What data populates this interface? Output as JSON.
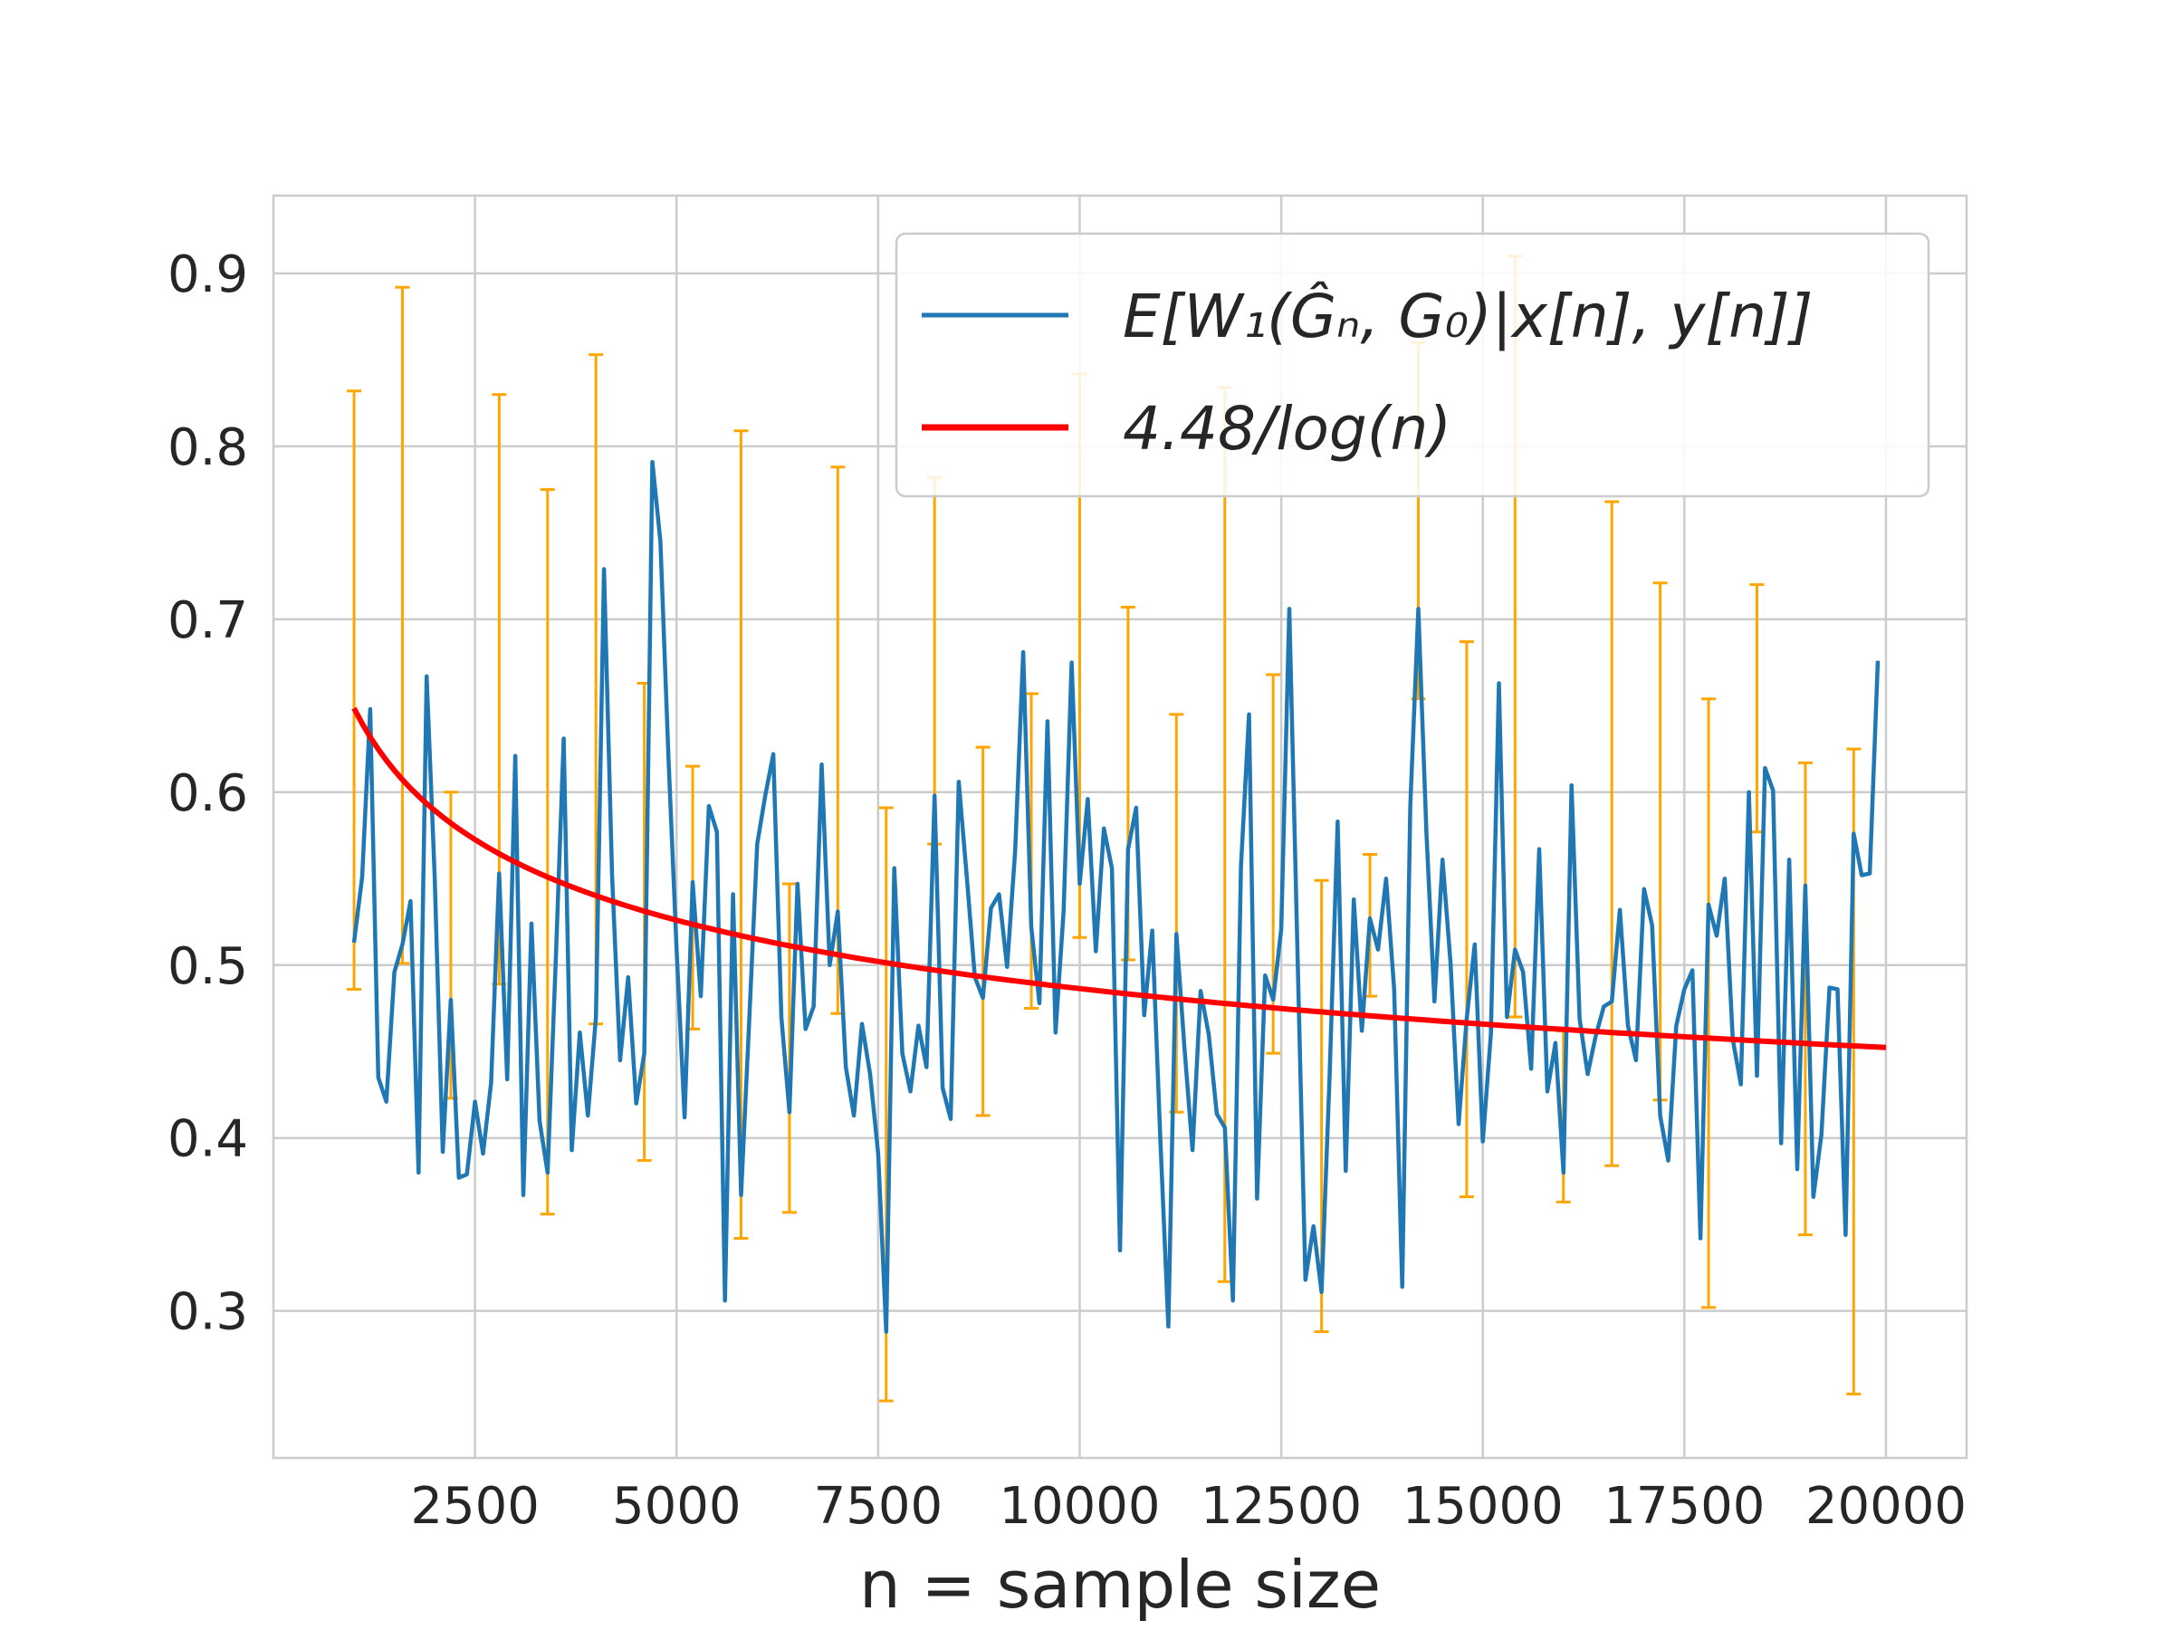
{
  "chart_data": {
    "type": "line",
    "title": "",
    "xlabel": "n = sample size",
    "ylabel": "",
    "xlim": [
      0,
      21000
    ],
    "ylim": [
      0.215,
      0.945
    ],
    "xticks": [
      2500,
      5000,
      7500,
      10000,
      12500,
      15000,
      17500,
      20000
    ],
    "yticks": [
      0.3,
      0.4,
      0.5,
      0.6,
      0.7,
      0.8,
      0.9
    ],
    "grid": true,
    "legend_position": "top-right",
    "colors": {
      "series": "#1f77b4",
      "fit": "#ff0000",
      "errorbars": "#ffa500",
      "grid": "#cccccc"
    },
    "series": [
      {
        "name": "E[W_1(Ĝ_n, G_0)|x^[n], y^[n]]",
        "legend_label": "E[W₁(Ĝₙ, G₀)|x[n], y[n]]",
        "color": "#1f77b4",
        "x_start": 1000,
        "x_step": 100,
        "values": [
          0.513,
          0.551,
          0.648,
          0.435,
          0.421,
          0.496,
          0.512,
          0.537,
          0.38,
          0.667,
          0.551,
          0.392,
          0.48,
          0.377,
          0.379,
          0.421,
          0.391,
          0.432,
          0.553,
          0.434,
          0.621,
          0.367,
          0.524,
          0.41,
          0.38,
          0.501,
          0.631,
          0.393,
          0.461,
          0.413,
          0.47,
          0.729,
          0.552,
          0.445,
          0.493,
          0.42,
          0.449,
          0.791,
          0.745,
          0.62,
          0.51,
          0.412,
          0.548,
          0.482,
          0.592,
          0.577,
          0.306,
          0.541,
          0.367,
          0.467,
          0.57,
          0.598,
          0.622,
          0.47,
          0.415,
          0.547,
          0.463,
          0.476,
          0.616,
          0.5,
          0.531,
          0.441,
          0.413,
          0.466,
          0.437,
          0.391,
          0.288,
          0.556,
          0.449,
          0.427,
          0.465,
          0.441,
          0.598,
          0.429,
          0.411,
          0.606,
          0.551,
          0.493,
          0.481,
          0.533,
          0.541,
          0.499,
          0.566,
          0.681,
          0.522,
          0.478,
          0.641,
          0.461,
          0.531,
          0.675,
          0.547,
          0.596,
          0.508,
          0.579,
          0.556,
          0.335,
          0.567,
          0.591,
          0.471,
          0.52,
          0.4,
          0.291,
          0.518,
          0.452,
          0.393,
          0.485,
          0.46,
          0.414,
          0.406,
          0.306,
          0.557,
          0.645,
          0.365,
          0.494,
          0.48,
          0.521,
          0.706,
          0.51,
          0.318,
          0.349,
          0.311,
          0.436,
          0.583,
          0.381,
          0.538,
          0.462,
          0.527,
          0.509,
          0.55,
          0.486,
          0.314,
          0.592,
          0.706,
          0.577,
          0.479,
          0.561,
          0.501,
          0.408,
          0.469,
          0.512,
          0.398,
          0.46,
          0.663,
          0.47,
          0.509,
          0.496,
          0.44,
          0.567,
          0.427,
          0.455,
          0.38,
          0.604,
          0.469,
          0.437,
          0.459,
          0.476,
          0.479,
          0.532,
          0.465,
          0.445,
          0.544,
          0.523,
          0.413,
          0.387,
          0.465,
          0.486,
          0.497,
          0.342,
          0.535,
          0.517,
          0.55,
          0.457,
          0.431,
          0.6,
          0.436,
          0.614,
          0.601,
          0.397,
          0.561,
          0.382,
          0.546,
          0.366,
          0.402,
          0.487,
          0.486,
          0.344,
          0.576,
          0.552,
          0.553,
          0.676
        ]
      },
      {
        "name": "4.48/log(n)",
        "color": "#ff0000",
        "coefficient": 4.48,
        "x_start": 1000,
        "x_end": 20000
      }
    ],
    "errorbars": {
      "color": "#ffa500",
      "points": [
        {
          "x": 1000,
          "low": 0.486,
          "high": 0.832
        },
        {
          "x": 1600,
          "low": 0.501,
          "high": 0.892
        },
        {
          "x": 2200,
          "low": 0.423,
          "high": 0.6
        },
        {
          "x": 2800,
          "low": 0.489,
          "high": 0.83
        },
        {
          "x": 3400,
          "low": 0.356,
          "high": 0.775
        },
        {
          "x": 4000,
          "low": 0.466,
          "high": 0.853
        },
        {
          "x": 4600,
          "low": 0.387,
          "high": 0.663
        },
        {
          "x": 5200,
          "low": 0.463,
          "high": 0.615
        },
        {
          "x": 5800,
          "low": 0.342,
          "high": 0.809
        },
        {
          "x": 6400,
          "low": 0.357,
          "high": 0.547
        },
        {
          "x": 7000,
          "low": 0.472,
          "high": 0.788
        },
        {
          "x": 7600,
          "low": 0.248,
          "high": 0.591
        },
        {
          "x": 8200,
          "low": 0.57,
          "high": 0.782
        },
        {
          "x": 8800,
          "low": 0.413,
          "high": 0.626
        },
        {
          "x": 9400,
          "low": 0.475,
          "high": 0.657
        },
        {
          "x": 10000,
          "low": 0.516,
          "high": 0.842
        },
        {
          "x": 10600,
          "low": 0.503,
          "high": 0.707
        },
        {
          "x": 11200,
          "low": 0.415,
          "high": 0.645
        },
        {
          "x": 11800,
          "low": 0.317,
          "high": 0.834
        },
        {
          "x": 12400,
          "low": 0.449,
          "high": 0.668
        },
        {
          "x": 13000,
          "low": 0.288,
          "high": 0.549
        },
        {
          "x": 13600,
          "low": 0.482,
          "high": 0.564
        },
        {
          "x": 14200,
          "low": 0.654,
          "high": 0.86
        },
        {
          "x": 14800,
          "low": 0.366,
          "high": 0.687
        },
        {
          "x": 15400,
          "low": 0.47,
          "high": 0.91
        },
        {
          "x": 16000,
          "low": 0.363,
          "high": 0.462
        },
        {
          "x": 16600,
          "low": 0.384,
          "high": 0.768
        },
        {
          "x": 17200,
          "low": 0.422,
          "high": 0.721
        },
        {
          "x": 17800,
          "low": 0.302,
          "high": 0.654
        },
        {
          "x": 18400,
          "low": 0.577,
          "high": 0.72
        },
        {
          "x": 19000,
          "low": 0.344,
          "high": 0.617
        },
        {
          "x": 19600,
          "low": 0.252,
          "high": 0.625
        }
      ]
    }
  }
}
